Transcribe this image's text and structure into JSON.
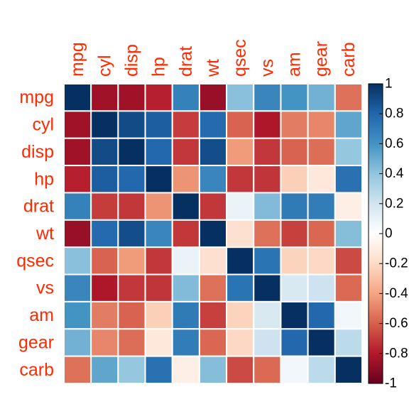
{
  "chart_data": {
    "type": "heatmap",
    "title": "",
    "variables": [
      "mpg",
      "cyl",
      "disp",
      "hp",
      "drat",
      "wt",
      "qsec",
      "vs",
      "am",
      "gear",
      "carb"
    ],
    "matrix": [
      [
        1.0,
        -0.85,
        -0.85,
        -0.78,
        0.68,
        -0.87,
        0.42,
        0.66,
        0.6,
        0.48,
        -0.55
      ],
      [
        -0.85,
        1.0,
        0.9,
        0.83,
        -0.7,
        0.78,
        -0.59,
        -0.81,
        -0.52,
        -0.49,
        0.53
      ],
      [
        -0.85,
        0.9,
        1.0,
        0.79,
        -0.71,
        0.89,
        -0.43,
        -0.71,
        -0.59,
        -0.56,
        0.39
      ],
      [
        -0.78,
        0.83,
        0.79,
        1.0,
        -0.45,
        0.66,
        -0.71,
        -0.72,
        -0.24,
        -0.13,
        0.75
      ],
      [
        0.68,
        -0.7,
        -0.71,
        -0.45,
        1.0,
        -0.71,
        0.09,
        0.44,
        0.71,
        0.7,
        -0.09
      ],
      [
        -0.87,
        0.78,
        0.89,
        0.66,
        -0.71,
        1.0,
        -0.17,
        -0.55,
        -0.69,
        -0.58,
        0.43
      ],
      [
        0.42,
        -0.59,
        -0.43,
        -0.71,
        0.09,
        -0.17,
        1.0,
        0.74,
        -0.23,
        -0.21,
        -0.66
      ],
      [
        0.66,
        -0.81,
        -0.71,
        -0.72,
        0.44,
        -0.55,
        0.74,
        1.0,
        0.17,
        0.21,
        -0.57
      ],
      [
        0.6,
        -0.52,
        -0.59,
        -0.24,
        0.71,
        -0.69,
        -0.23,
        0.17,
        1.0,
        0.79,
        0.06
      ],
      [
        0.48,
        -0.49,
        -0.56,
        -0.13,
        0.7,
        -0.58,
        -0.21,
        0.21,
        0.79,
        1.0,
        0.27
      ],
      [
        -0.55,
        0.53,
        0.39,
        0.75,
        -0.09,
        0.43,
        -0.66,
        -0.57,
        0.06,
        0.27,
        1.0
      ]
    ],
    "value_range": [
      -1,
      1
    ],
    "colorbar": {
      "ticks": [
        1,
        0.8,
        0.6,
        0.4,
        0.2,
        0,
        -0.2,
        -0.4,
        -0.6,
        -0.8,
        -1
      ],
      "tick_labels": [
        "1",
        "0.8",
        "0.6",
        "0.4",
        "0.2",
        "0",
        "-0.2",
        "-0.4",
        "-0.6",
        "-0.8",
        "-1"
      ],
      "placement": "right"
    },
    "colorscale": [
      "#67001f",
      "#b2182b",
      "#d6604d",
      "#f4a582",
      "#fddbc7",
      "#ffffff",
      "#d1e5f0",
      "#92c5de",
      "#4393c3",
      "#2166ac",
      "#053061"
    ],
    "label_color": "#ff2a00",
    "grid": true
  }
}
